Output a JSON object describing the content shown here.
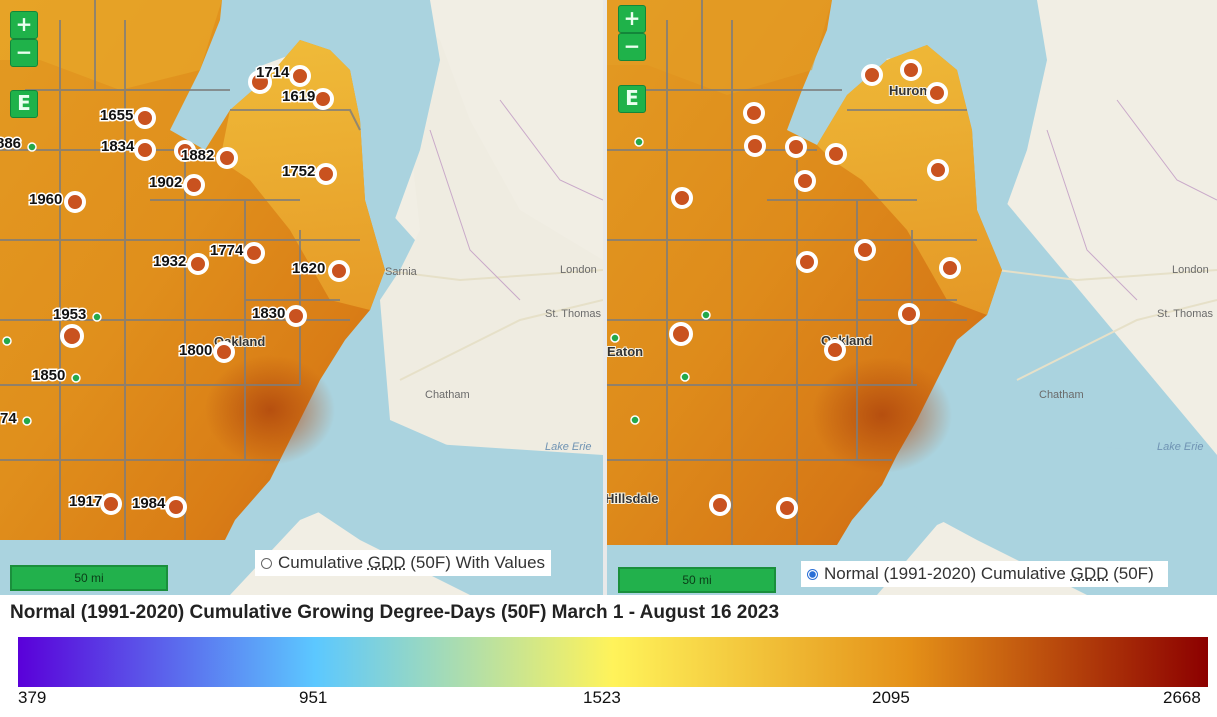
{
  "map_title": "Normal (1991-2020) Cumulative Growing Degree-Days (50F) March 1 - August 16 2023",
  "zoom": {
    "in_label": "+",
    "out_label": "−",
    "extent_label": "E"
  },
  "scale_label": "50 mi",
  "left_panel": {
    "layer_label_pre": "Cumulative ",
    "layer_label_gdd": "GDD",
    "layer_label_post": " (50F) With Values",
    "radio_selected": false,
    "station_values": [
      "1714",
      "1619",
      "1655",
      "886",
      "1834",
      "1882",
      "1752",
      "1902",
      "1960",
      "1774",
      "1932",
      "1620",
      "1953",
      "1830",
      "1800",
      "1850",
      "74",
      "1917",
      "1984"
    ]
  },
  "right_panel": {
    "layer_label_pre": "Normal (1991-2020) Cumulative ",
    "layer_label_gdd": "GDD",
    "layer_label_post": " (50F)",
    "radio_selected": true
  },
  "places": {
    "huron": "Huron",
    "oakland": "Oakland",
    "eaton": "Eaton",
    "hillsdale": "Hillsdale",
    "london": "London",
    "chatham": "Chatham",
    "st_thomas": "St. Thomas",
    "sarnia": "Sarnia",
    "lake_erie": "Lake Erie"
  },
  "colorbar": {
    "ticks": [
      "379",
      "951",
      "1523",
      "2095",
      "2668"
    ],
    "colors": [
      "#5a00d9",
      "#5cc8ff",
      "#fff35a",
      "#e49018",
      "#8c0000"
    ]
  }
}
